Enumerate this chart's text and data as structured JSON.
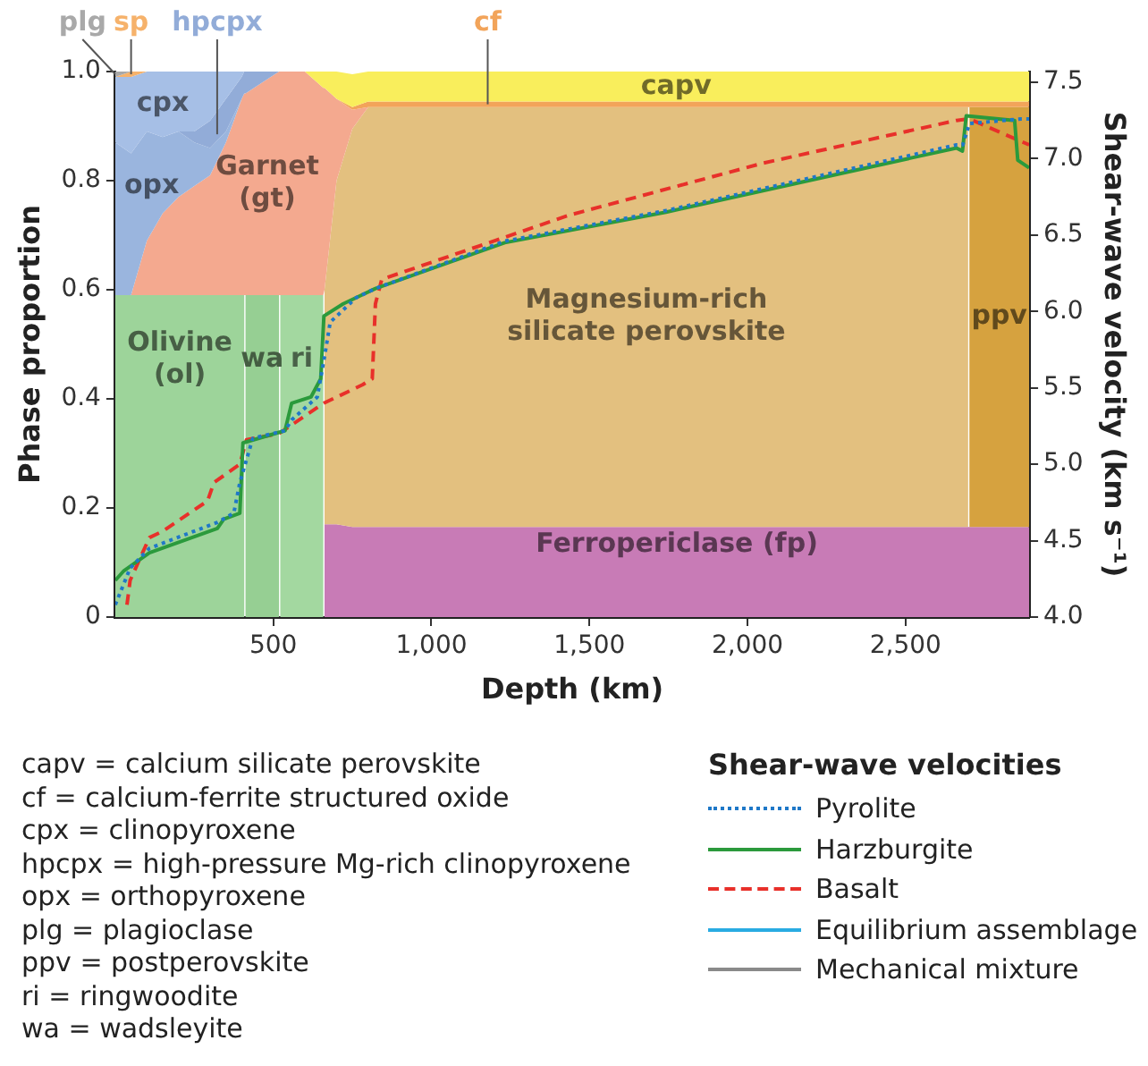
{
  "chart_data": {
    "type": "area",
    "stacked": true,
    "xlabel": "Depth (km)",
    "ylabel": "Phase proportion",
    "y2label": "Shear-wave velocity (km s⁻¹)",
    "legend_title": "Shear-wave velocities",
    "legend": "bottom right",
    "xlim": [
      0,
      2891
    ],
    "xticks": [
      {
        "value": 500,
        "label": "500"
      },
      {
        "value": 1000,
        "label": "1,000"
      },
      {
        "value": 1500,
        "label": "1,500"
      },
      {
        "value": 2000,
        "label": "2,000"
      },
      {
        "value": 2500,
        "label": "2,500"
      }
    ],
    "ylim": [
      0,
      1
    ],
    "yticks": [
      0,
      {
        "value": 0.2,
        "label": "0.2"
      },
      {
        "value": 0.4,
        "label": "0.4"
      },
      {
        "value": 0.6,
        "label": "0.6"
      },
      {
        "value": 0.8,
        "label": "0.8"
      },
      {
        "value": 1,
        "label": "1.0"
      }
    ],
    "y2lim": [
      4,
      7.57
    ],
    "y2ticks": [
      {
        "value": 4,
        "label": "4.0"
      },
      {
        "value": 4.5,
        "label": "4.5"
      },
      {
        "value": 5,
        "label": "5.0"
      },
      {
        "value": 5.5,
        "label": "5.5"
      },
      {
        "value": 6,
        "label": "6.0"
      },
      {
        "value": 6.5,
        "label": "6.5"
      },
      {
        "value": 7,
        "label": "7.0"
      },
      {
        "value": 7.5,
        "label": "7.5"
      }
    ],
    "x": [
      0,
      50,
      100,
      150,
      200,
      250,
      300,
      350,
      400,
      408,
      412,
      518,
      522,
      600,
      658,
      662,
      700,
      750,
      800,
      1000,
      1500,
      2000,
      2500,
      2698,
      2702,
      2891
    ],
    "series": [
      {
        "name": "Olivine (ol)",
        "color": "#9dd49a",
        "values": [
          0.59,
          0.59,
          0.59,
          0.59,
          0.59,
          0.59,
          0.59,
          0.59,
          0.59,
          0.59,
          null,
          null,
          null,
          null,
          null,
          null,
          null,
          null,
          null,
          null,
          null,
          null,
          null,
          null,
          null,
          null
        ]
      },
      {
        "name": "wa",
        "color": "#96cf93",
        "values": [
          null,
          null,
          null,
          null,
          null,
          null,
          null,
          null,
          null,
          null,
          0.59,
          0.59,
          null,
          null,
          null,
          null,
          null,
          null,
          null,
          null,
          null,
          null,
          null,
          null,
          null,
          null
        ]
      },
      {
        "name": "ri",
        "color": "#a3d8a0",
        "values": [
          null,
          null,
          null,
          null,
          null,
          null,
          null,
          null,
          null,
          null,
          null,
          null,
          0.59,
          0.59,
          0.59,
          null,
          null,
          null,
          null,
          null,
          null,
          null,
          null,
          null,
          null,
          null
        ]
      },
      {
        "name": "Ferropericlase (fp)",
        "color": "#c87bb6",
        "values": [
          null,
          null,
          null,
          null,
          null,
          null,
          null,
          null,
          null,
          null,
          null,
          null,
          null,
          null,
          null,
          0.17,
          0.17,
          0.165,
          0.165,
          0.165,
          0.165,
          0.165,
          0.165,
          0.165,
          0.165,
          0.165
        ]
      },
      {
        "name": "Magnesium-rich silicate perovskite",
        "color": "#e3c07f",
        "values": [
          null,
          null,
          null,
          null,
          null,
          null,
          null,
          null,
          null,
          null,
          null,
          null,
          null,
          null,
          null,
          0.43,
          0.63,
          0.73,
          0.77,
          0.77,
          0.77,
          0.77,
          0.77,
          0.77,
          null,
          null
        ]
      },
      {
        "name": "ppv",
        "color": "#d6a23f",
        "values": [
          null,
          null,
          null,
          null,
          null,
          null,
          null,
          null,
          null,
          null,
          null,
          null,
          null,
          null,
          null,
          null,
          null,
          null,
          null,
          null,
          null,
          null,
          null,
          null,
          0.77,
          0.77
        ]
      },
      {
        "name": "Garnet (gt)",
        "color": "#f4a98f",
        "values": [
          null,
          0,
          0.1,
          0.15,
          0.18,
          0.2,
          0.22,
          0.28,
          0.36,
          0.37,
          0.37,
          0.41,
          0.41,
          0.41,
          0.38,
          0.37,
          0.15,
          0.035,
          0,
          null,
          null,
          null,
          null,
          null,
          null,
          null
        ]
      },
      {
        "name": "opx",
        "color": "#9ab5de",
        "values": [
          0.28,
          0.26,
          0.2,
          0.14,
          0.12,
          0.08,
          0.05,
          0.02,
          0,
          null,
          null,
          null,
          null,
          null,
          null,
          null,
          null,
          null,
          null,
          null,
          null,
          null,
          null,
          null,
          null,
          null
        ]
      },
      {
        "name": "hpcpx",
        "color": "#92acd8",
        "values": [
          null,
          null,
          null,
          null,
          0,
          0.02,
          0.05,
          0.06,
          0.04,
          0.04,
          0.04,
          0,
          null,
          null,
          null,
          null,
          null,
          null,
          null,
          null,
          null,
          null,
          null,
          null,
          null,
          null
        ]
      },
      {
        "name": "cpx",
        "color": "#a6bfe6",
        "values": [
          0.12,
          0.14,
          0.11,
          0.12,
          0.11,
          0.11,
          0.09,
          0.05,
          0.01,
          0,
          null,
          null,
          null,
          null,
          null,
          null,
          null,
          null,
          null,
          null,
          null,
          null,
          null,
          null,
          null,
          null
        ]
      },
      {
        "name": "sp",
        "color": "#f6b26b",
        "values": [
          0,
          0.01,
          0,
          null,
          null,
          null,
          null,
          null,
          null,
          null,
          null,
          null,
          null,
          null,
          null,
          null,
          null,
          null,
          null,
          null,
          null,
          null,
          null,
          null,
          null,
          null
        ]
      },
      {
        "name": "plg",
        "color": "#a9a9a9",
        "values": [
          0.01,
          0,
          null,
          null,
          null,
          null,
          null,
          null,
          null,
          null,
          null,
          null,
          null,
          null,
          null,
          null,
          null,
          null,
          null,
          null,
          null,
          null,
          null,
          null,
          null,
          null
        ]
      },
      {
        "name": "cf",
        "color": "#f2a45a",
        "values": [
          null,
          null,
          null,
          null,
          null,
          null,
          null,
          null,
          null,
          null,
          null,
          null,
          null,
          null,
          null,
          null,
          0,
          0.005,
          0.01,
          0.01,
          0.01,
          0.01,
          0.01,
          0.01,
          0.01,
          0.01
        ]
      },
      {
        "name": "capv",
        "color": "#f9ee5c",
        "values": [
          null,
          null,
          null,
          null,
          null,
          null,
          null,
          null,
          null,
          null,
          null,
          null,
          null,
          0,
          0.03,
          0.03,
          0.05,
          0.06,
          0.055,
          0.055,
          0.055,
          0.055,
          0.055,
          0.055,
          0.055,
          0.055
        ]
      },
      {
        "name": "Pyrolite",
        "type": "line",
        "axis": "y2",
        "line_style": "dotted",
        "color": "#1f78c8",
        "x": [
          0,
          47,
          108,
          323,
          375,
          394,
          435,
          537,
          558,
          639,
          660,
          680,
          762,
          823,
          1232,
          1742,
          2661,
          2681,
          2702,
          2866,
          2891
        ],
        "values": [
          4.08,
          4.32,
          4.45,
          4.62,
          4.68,
          4.88,
          5.17,
          5.22,
          5.29,
          5.44,
          5.68,
          5.93,
          6.09,
          6.15,
          6.46,
          6.66,
          7.09,
          7.09,
          7.23,
          7.26,
          7.26
        ]
      },
      {
        "name": "Harzburgite",
        "type": "line",
        "axis": "y2",
        "line_style": "solid",
        "color": "#2b9a3c",
        "x": [
          0,
          26,
          108,
          323,
          343,
          394,
          404,
          537,
          558,
          619,
          650,
          660,
          721,
          782,
          823,
          1232,
          1742,
          2661,
          2680,
          2692,
          2845,
          2855,
          2891
        ],
        "values": [
          4.24,
          4.3,
          4.42,
          4.58,
          4.64,
          4.68,
          5.14,
          5.22,
          5.4,
          5.44,
          5.56,
          5.97,
          6.05,
          6.11,
          6.15,
          6.45,
          6.65,
          7.07,
          7.05,
          7.28,
          7.25,
          6.99,
          6.94
        ]
      },
      {
        "name": "Basalt",
        "type": "line",
        "axis": "y2",
        "line_style": "dashed",
        "color": "#e8302a",
        "x": [
          37,
          47,
          108,
          149,
          292,
          312,
          394,
          415,
          517,
          660,
          782,
          813,
          823,
          843,
          1436,
          2048,
          2661,
          2702,
          2891
        ],
        "values": [
          4.08,
          4.24,
          4.52,
          4.56,
          4.76,
          4.88,
          5.0,
          5.16,
          5.2,
          5.4,
          5.52,
          5.56,
          6.05,
          6.21,
          6.63,
          6.97,
          7.25,
          7.26,
          7.09
        ]
      },
      {
        "name": "Equilibrium assemblage",
        "type": "line",
        "axis": "y2",
        "line_style": "solid",
        "color": "#29abe2",
        "values": [
          null,
          null,
          null,
          null,
          null,
          null,
          null,
          null,
          null,
          null,
          null,
          null,
          null,
          null,
          null,
          null,
          null,
          null,
          null,
          null,
          null,
          null,
          null,
          null,
          null,
          null
        ]
      },
      {
        "name": "Mechanical mixture",
        "type": "line",
        "axis": "y2",
        "line_style": "solid",
        "color": "#8a8a8a",
        "values": [
          null,
          null,
          null,
          null,
          null,
          null,
          null,
          null,
          null,
          null,
          null,
          null,
          null,
          null,
          null,
          null,
          null,
          null,
          null,
          null,
          null,
          null,
          null,
          null,
          null,
          null
        ]
      }
    ],
    "annotations": [
      "capv = calcium silicate perovskite",
      "cf = calcium-ferrite structured oxide",
      "cpx = clinopyroxene",
      "hpcpx = high-pressure Mg-rich clinopyroxene",
      "opx = orthopyroxene",
      "plg = plagioclase",
      "ppv = postperovskite",
      "ri = ringwoodite",
      "wa = wadsleyite"
    ]
  }
}
